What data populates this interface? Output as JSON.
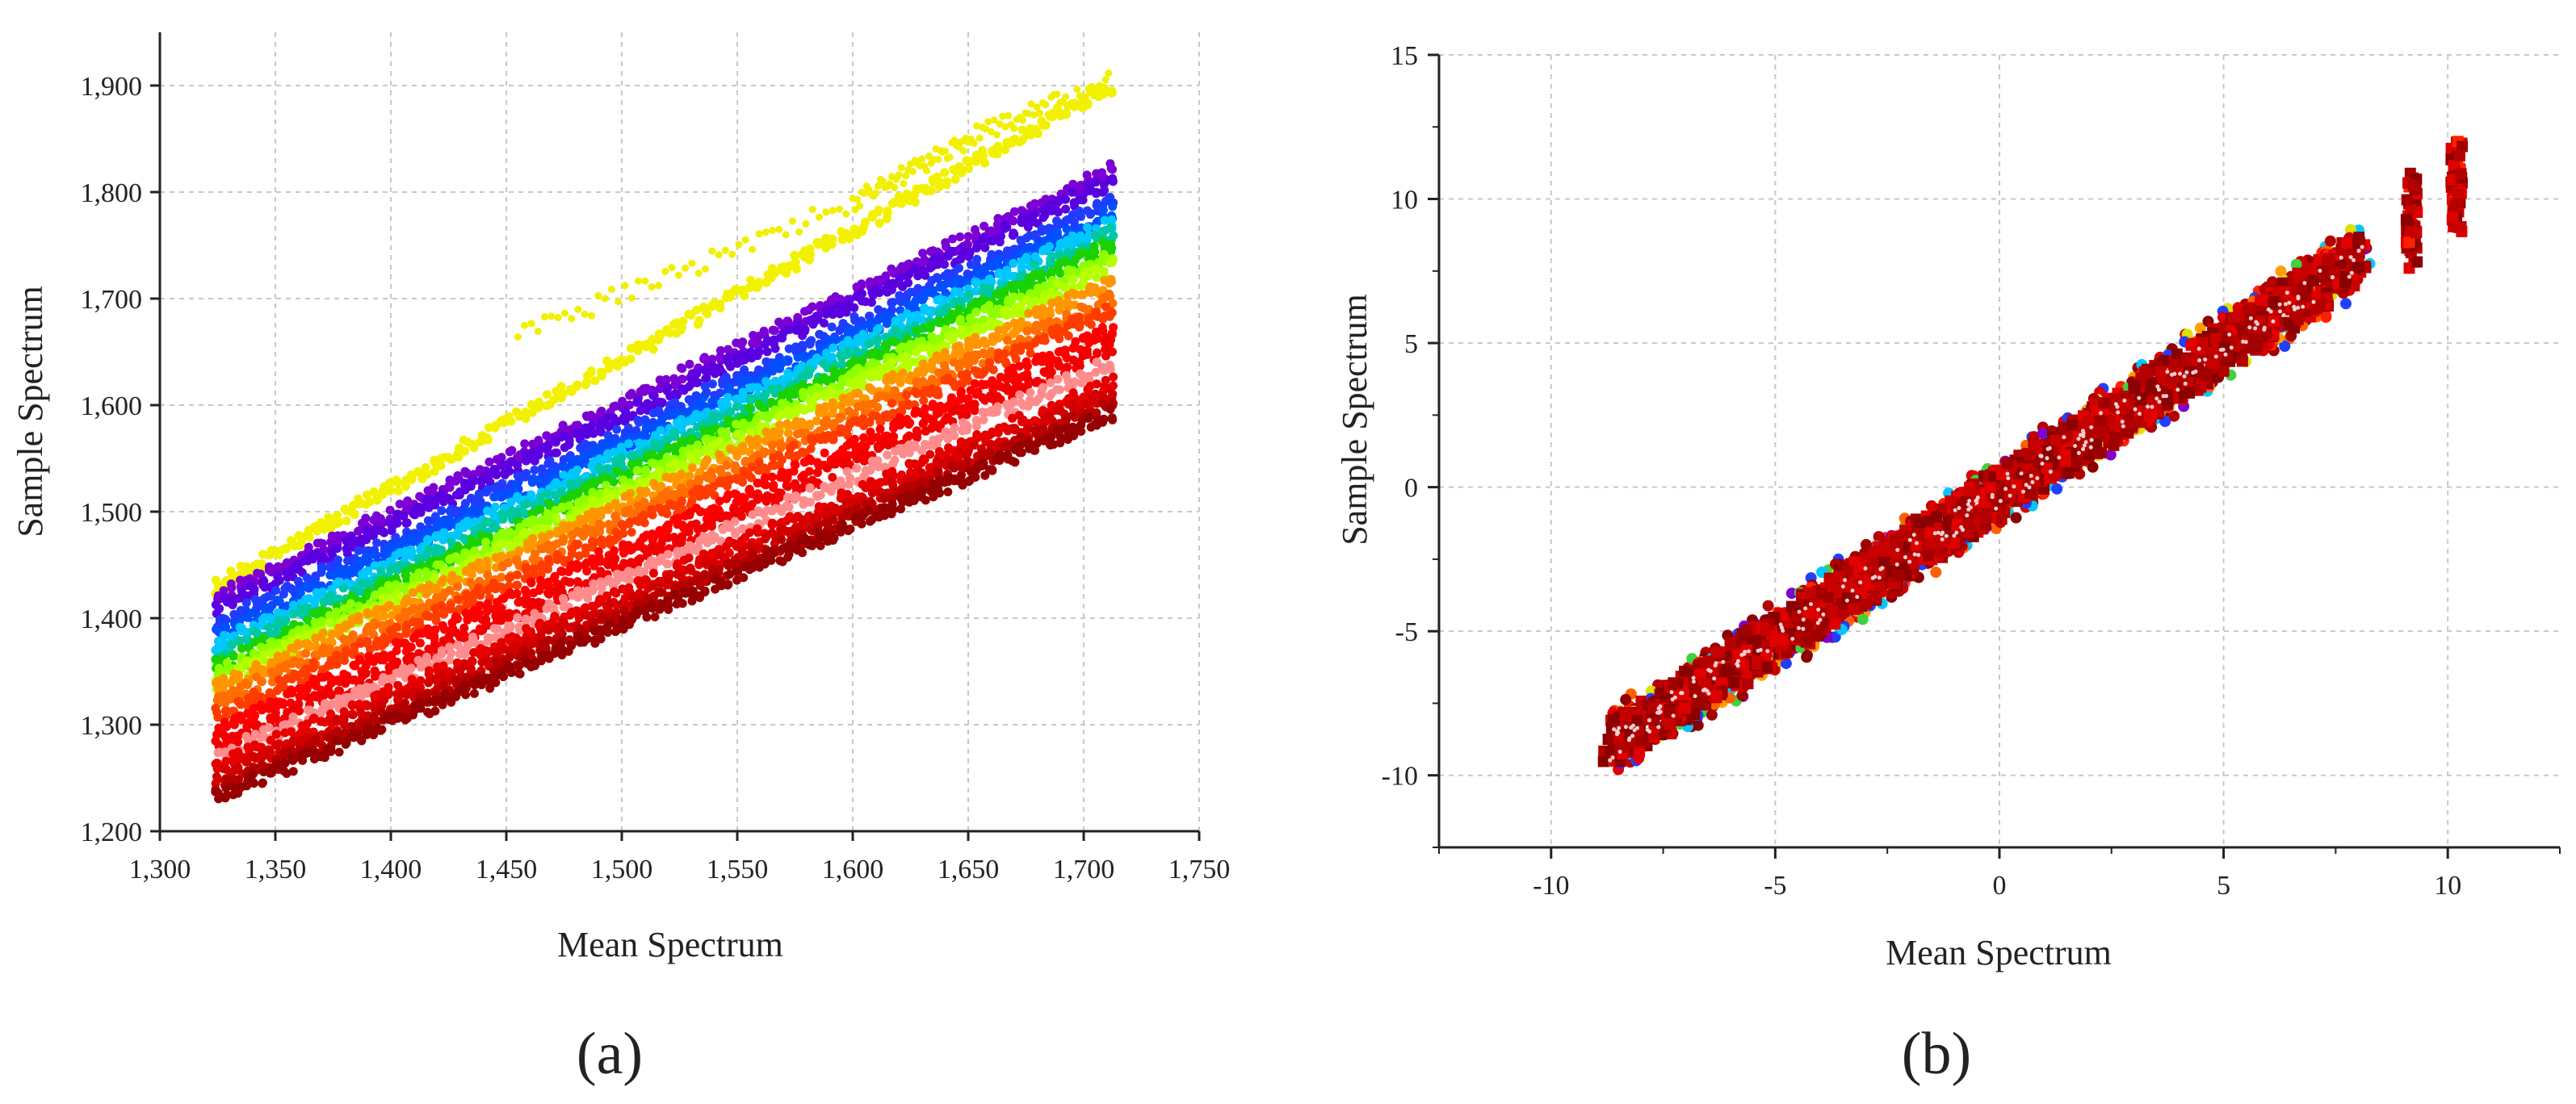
{
  "chart_data": [
    {
      "type": "scatter",
      "panel_label": "(a)",
      "xlabel": "Mean Spectrum",
      "ylabel": "Sample Spectrum",
      "xlim": [
        1300,
        1750
      ],
      "ylim": [
        1200,
        1950
      ],
      "x_ticks": [
        "1,300",
        "1,350",
        "1,400",
        "1,450",
        "1,500",
        "1,550",
        "1,600",
        "1,650",
        "1,700",
        "1,750"
      ],
      "y_ticks": [
        "1,200",
        "1,300",
        "1,400",
        "1,500",
        "1,600",
        "1,700",
        "1,800",
        "1,900"
      ],
      "grid": true,
      "x_data_range": [
        1325,
        1712
      ],
      "series": [
        {
          "name": "yellow",
          "color": "#f2f200",
          "start": 1430,
          "end": 1900
        },
        {
          "name": "purple-1",
          "color": "#7b00d4",
          "start": 1420,
          "end": 1820
        },
        {
          "name": "purple-2",
          "color": "#5a00e0",
          "start": 1410,
          "end": 1810
        },
        {
          "name": "blue-1",
          "color": "#1f3cff",
          "start": 1395,
          "end": 1790
        },
        {
          "name": "blue-2",
          "color": "#0050ff",
          "start": 1385,
          "end": 1780
        },
        {
          "name": "cyan",
          "color": "#00c8ff",
          "start": 1375,
          "end": 1770
        },
        {
          "name": "teal",
          "color": "#00c8a0",
          "start": 1365,
          "end": 1760
        },
        {
          "name": "green",
          "color": "#19d200",
          "start": 1355,
          "end": 1750
        },
        {
          "name": "yellow-green",
          "color": "#8cff00",
          "start": 1348,
          "end": 1740
        },
        {
          "name": "lime",
          "color": "#b4ff00",
          "start": 1340,
          "end": 1730
        },
        {
          "name": "orange",
          "color": "#ff9600",
          "start": 1335,
          "end": 1715
        },
        {
          "name": "dark-orange",
          "color": "#ff6e00",
          "start": 1322,
          "end": 1700
        },
        {
          "name": "red-orange",
          "color": "#ff3c00",
          "start": 1310,
          "end": 1690
        },
        {
          "name": "red-1",
          "color": "#ff0000",
          "start": 1295,
          "end": 1670
        },
        {
          "name": "red-2",
          "color": "#f00000",
          "start": 1280,
          "end": 1655
        },
        {
          "name": "pink",
          "color": "#ff8c8c",
          "start": 1270,
          "end": 1640
        },
        {
          "name": "red-3",
          "color": "#e60000",
          "start": 1260,
          "end": 1620
        },
        {
          "name": "crimson",
          "color": "#d20000",
          "start": 1250,
          "end": 1610
        },
        {
          "name": "dark-red-1",
          "color": "#b40000",
          "start": 1240,
          "end": 1600
        },
        {
          "name": "dark-red-2",
          "color": "#960000",
          "start": 1232,
          "end": 1592
        }
      ],
      "yellow_upper_trend": {
        "x": [
          1455,
          1600,
          1650,
          1712
        ],
        "y": [
          1665,
          1790,
          1850,
          1905
        ]
      }
    },
    {
      "type": "scatter",
      "panel_label": "(b)",
      "xlabel": "Mean Spectrum",
      "ylabel": "Sample Spectrum",
      "xlim": [
        -12.5,
        12.5
      ],
      "ylim": [
        -12.5,
        15
      ],
      "x_ticks": [
        "-10",
        "-5",
        "0",
        "5",
        "10"
      ],
      "x_tick_values": [
        -10,
        -5,
        0,
        5,
        10
      ],
      "y_ticks": [
        "-10",
        "-5",
        "0",
        "5",
        "10",
        "15"
      ],
      "y_tick_values": [
        -10,
        -5,
        0,
        5,
        10,
        15
      ],
      "grid": true,
      "trend": {
        "x": [
          -8.7,
          8.1
        ],
        "y": [
          -9.0,
          8.0
        ]
      },
      "outlier_clusters": [
        {
          "x": 9.2,
          "y_range": [
            7.5,
            11
          ]
        },
        {
          "x": 10.2,
          "y_range": [
            8.8,
            12
          ]
        }
      ],
      "colors": [
        "#8b0000",
        "#a00000",
        "#b40000",
        "#c80000",
        "#e00000",
        "#ff2000",
        "#ff6000",
        "#ffa000",
        "#e0e000",
        "#40d040",
        "#00c8ff",
        "#2040ff",
        "#8000d0"
      ]
    }
  ]
}
